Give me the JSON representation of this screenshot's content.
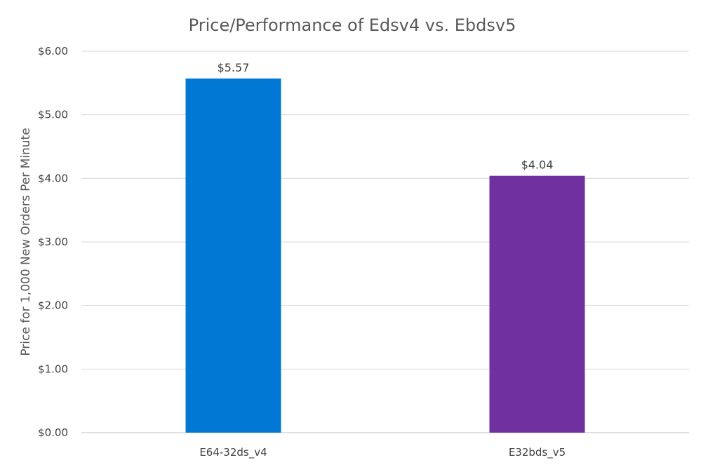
{
  "chart_data": {
    "type": "bar",
    "title": "Price/Performance of Edsv4 vs. Ebdsv5",
    "ylabel": "Price for 1,000 New Orders Per Minute",
    "xlabel": "",
    "categories": [
      "E64-32ds_v4",
      "E32bds_v5"
    ],
    "values": [
      5.57,
      4.04
    ],
    "data_labels": [
      "$5.57",
      "$4.04"
    ],
    "colors": [
      "#0078d4",
      "#7030a0"
    ],
    "ylim": [
      0,
      6
    ],
    "yticks": [
      0,
      1,
      2,
      3,
      4,
      5,
      6
    ],
    "ytick_labels": [
      "$0.00",
      "$1.00",
      "$2.00",
      "$3.00",
      "$4.00",
      "$5.00",
      "$6.00"
    ],
    "grid": true,
    "legend": "none"
  }
}
